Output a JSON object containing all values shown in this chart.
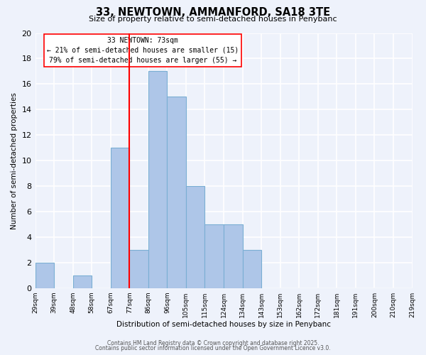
{
  "title": "33, NEWTOWN, AMMANFORD, SA18 3TE",
  "subtitle": "Size of property relative to semi-detached houses in Penybanc",
  "xlabel": "Distribution of semi-detached houses by size in Penybanc",
  "ylabel": "Number of semi-detached properties",
  "bin_labels": [
    "29sqm",
    "39sqm",
    "48sqm",
    "58sqm",
    "67sqm",
    "77sqm",
    "86sqm",
    "96sqm",
    "105sqm",
    "115sqm",
    "124sqm",
    "134sqm",
    "143sqm",
    "153sqm",
    "162sqm",
    "172sqm",
    "181sqm",
    "191sqm",
    "200sqm",
    "210sqm",
    "219sqm"
  ],
  "counts": [
    2,
    0,
    1,
    0,
    11,
    3,
    17,
    15,
    8,
    5,
    5,
    3,
    0,
    0,
    0,
    0,
    0,
    0,
    0,
    0
  ],
  "bar_color": "#aec6e8",
  "bar_edge_color": "#7aafd4",
  "property_line_bin": 5,
  "property_line_color": "red",
  "annotation_title": "33 NEWTOWN: 73sqm",
  "annotation_line1": "← 21% of semi-detached houses are smaller (15)",
  "annotation_line2": "79% of semi-detached houses are larger (55) →",
  "annotation_box_color": "white",
  "annotation_box_edge": "red",
  "ylim": [
    0,
    20
  ],
  "yticks": [
    0,
    2,
    4,
    6,
    8,
    10,
    12,
    14,
    16,
    18,
    20
  ],
  "footer1": "Contains HM Land Registry data © Crown copyright and database right 2025.",
  "footer2": "Contains public sector information licensed under the Open Government Licence v3.0.",
  "background_color": "#eef2fb",
  "grid_color": "white"
}
